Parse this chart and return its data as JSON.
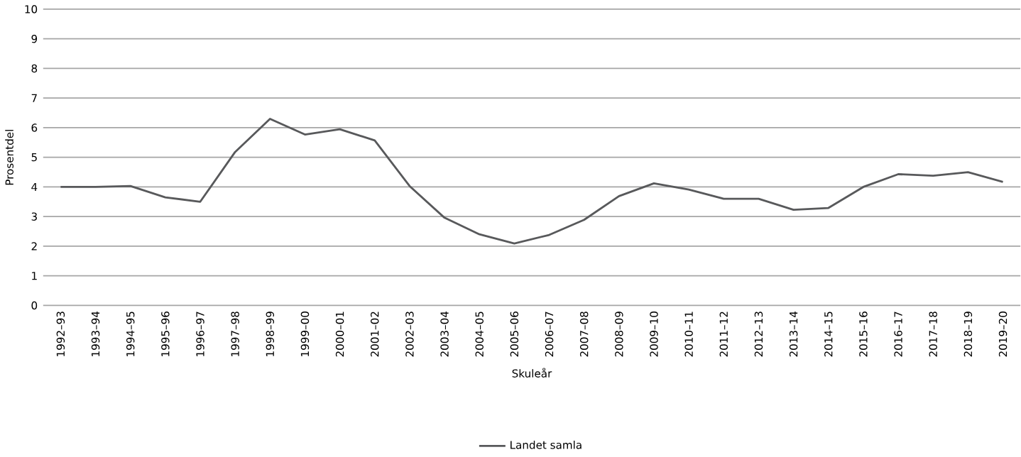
{
  "chart_data": {
    "type": "line",
    "xlabel": "Skuleår",
    "ylabel": "Prosentdel",
    "categories": [
      "1992–93",
      "1993–94",
      "1994–95",
      "1995–96",
      "1996–97",
      "1997–98",
      "1998–99",
      "1999–00",
      "2000–01",
      "2001–02",
      "2002–03",
      "2003–04",
      "2004–05",
      "2005–06",
      "2006–07",
      "2007–08",
      "2008–09",
      "2009–10",
      "2010–11",
      "2011–12",
      "2012–13",
      "2013–14",
      "2014–15",
      "2015–16",
      "2016–17",
      "2017–18",
      "2018–19",
      "2019–20"
    ],
    "series": [
      {
        "name": "Landet samla",
        "color": "#58595b",
        "values": [
          4.0,
          4.0,
          4.03,
          3.65,
          3.5,
          5.18,
          6.3,
          5.77,
          5.95,
          5.57,
          4.03,
          2.96,
          2.4,
          2.09,
          2.38,
          2.89,
          3.69,
          4.12,
          3.91,
          3.6,
          3.6,
          3.23,
          3.29,
          4.0,
          4.43,
          4.38,
          4.5,
          4.17
        ]
      }
    ],
    "ylim": [
      0,
      10
    ],
    "yticks": [
      0,
      1,
      2,
      3,
      4,
      5,
      6,
      7,
      8,
      9,
      10
    ],
    "grid": "y",
    "legend": "bottom",
    "marker": "none",
    "line_style": "solid"
  }
}
